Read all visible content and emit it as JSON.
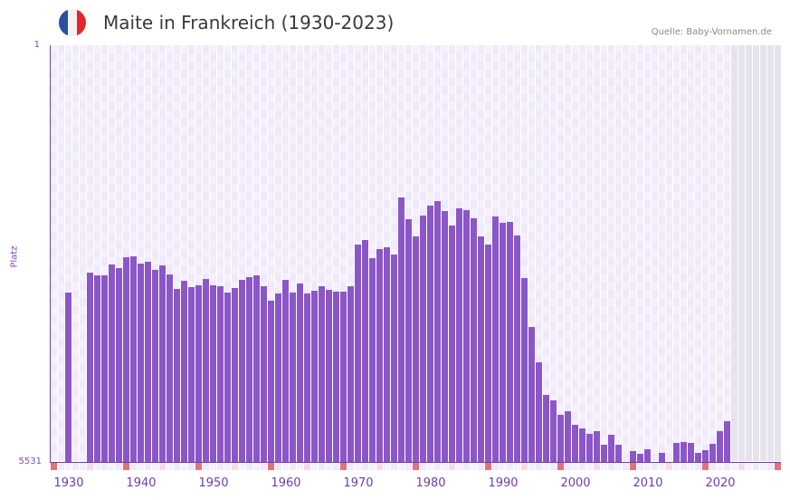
{
  "header": {
    "title": "Maite in Frankreich (1930-2023)",
    "source": "Quelle: Baby-Vornamen.de",
    "flag_colors": [
      "#2b4ea2",
      "#f1f1f1",
      "#e5262d"
    ]
  },
  "colors": {
    "bar": "#8b56c8",
    "axis": "#6b3fa8",
    "grid_a": "#efe9fa",
    "grid_b": "#f4f0fc",
    "future_grid": "#e6e2ee",
    "marker_strong": "#e0737a",
    "marker_light": "#f5dbe3"
  },
  "axes": {
    "ylabel": "Platz",
    "ytick_top": "1",
    "ytick_bottom": "5531",
    "xticks": [
      "1930",
      "1940",
      "1950",
      "1960",
      "1970",
      "1980",
      "1990",
      "2000",
      "2010",
      "2020"
    ]
  },
  "chart_data": {
    "type": "bar",
    "title": "Maite in Frankreich (1930-2023)",
    "xlabel": "",
    "ylabel": "Platz",
    "ylim": [
      5531,
      1
    ],
    "y_inverted": true,
    "x_range": [
      1928,
      2028
    ],
    "grid": true,
    "x": [
      1930,
      1931,
      1932,
      1933,
      1934,
      1935,
      1936,
      1937,
      1938,
      1939,
      1940,
      1941,
      1942,
      1943,
      1944,
      1945,
      1946,
      1947,
      1948,
      1949,
      1950,
      1951,
      1952,
      1953,
      1954,
      1955,
      1956,
      1957,
      1958,
      1959,
      1960,
      1961,
      1962,
      1963,
      1964,
      1965,
      1966,
      1967,
      1968,
      1969,
      1970,
      1971,
      1972,
      1973,
      1974,
      1975,
      1976,
      1977,
      1978,
      1979,
      1980,
      1981,
      1982,
      1983,
      1984,
      1985,
      1986,
      1987,
      1988,
      1989,
      1990,
      1991,
      1992,
      1993,
      1994,
      1995,
      1996,
      1997,
      1998,
      1999,
      2000,
      2001,
      2002,
      2003,
      2004,
      2005,
      2006,
      2007,
      2008,
      2009,
      2010,
      2011,
      2012,
      2013,
      2014,
      2015,
      2016,
      2017,
      2018,
      2019,
      2020,
      2021
    ],
    "values": [
      3287,
      null,
      null,
      3022,
      3058,
      3058,
      2914,
      2962,
      2817,
      2805,
      2901,
      2877,
      2986,
      2926,
      3046,
      3238,
      3130,
      3214,
      3190,
      3106,
      3190,
      3202,
      3287,
      3226,
      3118,
      3082,
      3058,
      3202,
      3395,
      3299,
      3118,
      3287,
      3166,
      3299,
      3263,
      3202,
      3250,
      3275,
      3275,
      3202,
      2648,
      2588,
      2829,
      2708,
      2684,
      2781,
      2022,
      2311,
      2539,
      2263,
      2130,
      2070,
      2202,
      2395,
      2167,
      2191,
      2299,
      2539,
      2648,
      2275,
      2359,
      2347,
      2527,
      3094,
      3744,
      4213,
      4646,
      4718,
      4911,
      4863,
      5032,
      5092,
      5164,
      5128,
      5308,
      5176,
      5308,
      null,
      5392,
      5428,
      5368,
      null,
      5416,
      null,
      5284,
      5272,
      5284,
      5416,
      5380,
      5296,
      5128,
      4995
    ]
  }
}
